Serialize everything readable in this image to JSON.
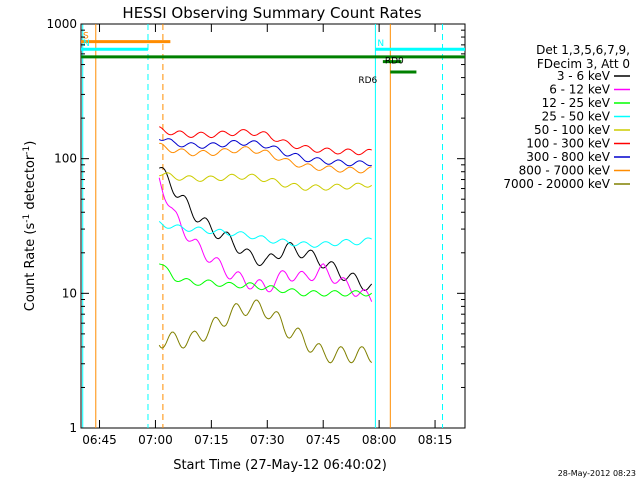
{
  "chart_data": {
    "type": "line",
    "title": "HESSI Observing Summary Count Rates",
    "xlabel": "Start Time (27-May-12 06:40:02)",
    "ylabel": "Count Rate (s",
    "ylabel_sup1": "-1",
    "ylabel_mid": " detector",
    "ylabel_sup2": "-1",
    "ylabel_end": ")",
    "yscale": "log",
    "ylim": [
      1,
      1000
    ],
    "xlim": [
      "06:40:02",
      "08:23:02"
    ],
    "x_ticks": [
      "06:45",
      "07:00",
      "07:15",
      "07:30",
      "07:45",
      "08:00",
      "08:15"
    ],
    "y_ticks": [
      "1",
      "10",
      "100",
      "1000"
    ],
    "grid": false,
    "legend_position": "right",
    "legend_header": [
      "Det 1,3,5,6,7,9,",
      "FDecim 3, Att 0"
    ],
    "footer_date": "28-May-2012 08:23",
    "series": [
      {
        "name": "3 - 6 keV",
        "color": "#000000",
        "x": [
          "07:01",
          "07:05",
          "07:10",
          "07:15",
          "07:20",
          "07:25",
          "07:30",
          "07:35",
          "07:40",
          "07:45",
          "07:50",
          "07:55",
          "07:58"
        ],
        "y": [
          85,
          60,
          40,
          30,
          25,
          19,
          17,
          22,
          20,
          17,
          14,
          12,
          11
        ]
      },
      {
        "name": "6 - 12 keV",
        "color": "#ff00ff",
        "x": [
          "07:01",
          "07:05",
          "07:10",
          "07:15",
          "07:20",
          "07:25",
          "07:30",
          "07:35",
          "07:40",
          "07:45",
          "07:50",
          "07:55",
          "07:58"
        ],
        "y": [
          70,
          38,
          24,
          18,
          14,
          12,
          11,
          14,
          13,
          15,
          12,
          10,
          9
        ]
      },
      {
        "name": "12 - 25 keV",
        "color": "#00ff00",
        "x": [
          "07:01",
          "07:05",
          "07:10",
          "07:15",
          "07:20",
          "07:25",
          "07:30",
          "07:35",
          "07:40",
          "07:45",
          "07:50",
          "07:55",
          "07:58"
        ],
        "y": [
          17,
          13,
          12,
          12,
          11.5,
          11.5,
          11,
          10.5,
          10,
          10,
          10,
          10,
          10
        ]
      },
      {
        "name": "25 - 50 keV",
        "color": "#00ffff",
        "x": [
          "07:01",
          "07:05",
          "07:10",
          "07:15",
          "07:20",
          "07:25",
          "07:30",
          "07:35",
          "07:40",
          "07:45",
          "07:50",
          "07:55",
          "07:58"
        ],
        "y": [
          33,
          31,
          30,
          29,
          28,
          27,
          25,
          24,
          23,
          23,
          24,
          24,
          25
        ]
      },
      {
        "name": "50 - 100 keV",
        "color": "#cccc00",
        "x": [
          "07:01",
          "07:05",
          "07:10",
          "07:15",
          "07:20",
          "07:25",
          "07:30",
          "07:35",
          "07:40",
          "07:45",
          "07:50",
          "07:55",
          "07:58"
        ],
        "y": [
          78,
          73,
          71,
          71,
          73,
          74,
          70,
          64,
          61,
          61,
          62,
          63,
          65
        ]
      },
      {
        "name": "100 - 300 keV",
        "color": "#ff0000",
        "x": [
          "07:01",
          "07:05",
          "07:10",
          "07:15",
          "07:20",
          "07:25",
          "07:30",
          "07:35",
          "07:40",
          "07:45",
          "07:50",
          "07:55",
          "07:58"
        ],
        "y": [
          165,
          155,
          150,
          150,
          155,
          158,
          150,
          130,
          120,
          115,
          113,
          112,
          112
        ]
      },
      {
        "name": "300 - 800 keV",
        "color": "#0000cc",
        "x": [
          "07:01",
          "07:05",
          "07:10",
          "07:15",
          "07:20",
          "07:25",
          "07:30",
          "07:35",
          "07:40",
          "07:45",
          "07:50",
          "07:55",
          "07:58"
        ],
        "y": [
          145,
          130,
          125,
          125,
          130,
          132,
          125,
          110,
          100,
          96,
          93,
          92,
          93
        ]
      },
      {
        "name": "800 - 7000 keV",
        "color": "#ff8c00",
        "x": [
          "07:01",
          "07:05",
          "07:10",
          "07:15",
          "07:20",
          "07:25",
          "07:30",
          "07:35",
          "07:40",
          "07:45",
          "07:50",
          "07:55",
          "07:58"
        ],
        "y": [
          125,
          115,
          110,
          110,
          115,
          118,
          110,
          96,
          88,
          85,
          83,
          82,
          83
        ]
      },
      {
        "name": "7000 - 20000 keV",
        "color": "#808000",
        "x": [
          "07:01",
          "07:05",
          "07:10",
          "07:15",
          "07:20",
          "07:25",
          "07:30",
          "07:35",
          "07:40",
          "07:45",
          "07:50",
          "07:55",
          "07:58"
        ],
        "y": [
          4.5,
          4.5,
          4.5,
          5.5,
          7,
          8,
          7.5,
          5.5,
          4.5,
          3.5,
          3.5,
          3.5,
          3.5
        ]
      }
    ],
    "annotations": [
      {
        "label": "S",
        "color": "#ff8c00",
        "level": 740,
        "x_start": "06:40:02",
        "x_end": "07:04"
      },
      {
        "label": "N",
        "color": "#00ffff",
        "level": 650,
        "x_start": "06:40:02",
        "x_end": "06:58"
      },
      {
        "label": "N",
        "color": "#00ffff",
        "level": 650,
        "x_start": "07:59",
        "x_end": "08:23:02"
      },
      {
        "label": "",
        "color": "#008000",
        "level": 570,
        "x_start": "06:40:02",
        "x_end": "08:23:02"
      },
      {
        "label": "RD0",
        "color": "#008000",
        "level": 525,
        "x_start": "08:01",
        "x_end": "08:06"
      },
      {
        "label": "RD6",
        "color": "#008000",
        "level": 440,
        "x_start": "08:03",
        "x_end": "08:10"
      }
    ],
    "vertical_markers": [
      {
        "x": "06:40:30",
        "color": "#00ffff",
        "style": "solid"
      },
      {
        "x": "06:44",
        "color": "#ff8c00",
        "style": "solid"
      },
      {
        "x": "06:58",
        "color": "#00ffff",
        "style": "dashed"
      },
      {
        "x": "07:02",
        "color": "#ff8c00",
        "style": "dashed"
      },
      {
        "x": "07:59",
        "color": "#00ffff",
        "style": "solid"
      },
      {
        "x": "08:03",
        "color": "#ff8c00",
        "style": "solid"
      },
      {
        "x": "08:17",
        "color": "#00ffff",
        "style": "dashed"
      }
    ]
  }
}
